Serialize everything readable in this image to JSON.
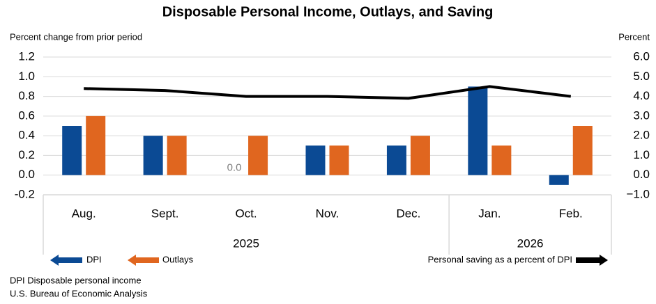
{
  "chart_data": {
    "type": "bar-line",
    "title": "Disposable Personal Income, Outlays, and Saving",
    "y_label": "Percent change from prior period",
    "y2_label": "Percent",
    "categories": [
      "Aug.",
      "Sept.",
      "Oct.",
      "Nov.",
      "Dec.",
      "Jan.",
      "Feb."
    ],
    "category_groups": [
      {
        "label": "2025",
        "span": 5
      },
      {
        "label": "2026",
        "span": 2
      }
    ],
    "series": [
      {
        "name": "DPI",
        "type": "bar",
        "color": "#0b4a94",
        "values": [
          0.5,
          0.4,
          0.0,
          0.3,
          0.3,
          0.9,
          -0.1
        ],
        "value_labels": [
          null,
          null,
          "0.0",
          null,
          null,
          null,
          null
        ]
      },
      {
        "name": "Outlays",
        "type": "bar",
        "color": "#e0661f",
        "values": [
          0.6,
          0.4,
          0.4,
          0.3,
          0.4,
          0.3,
          0.5
        ]
      },
      {
        "name": "Personal saving as a percent of DPI",
        "type": "line",
        "axis": "y2",
        "color": "#000000",
        "values": [
          4.4,
          4.3,
          4.0,
          4.0,
          3.9,
          4.5,
          4.0
        ]
      }
    ],
    "ylim": [
      -0.2,
      1.2
    ],
    "yticks": [
      -0.2,
      0.2,
      0.4,
      0.6,
      0.8,
      {
        "value": 0,
        "label": "0.0"
      },
      {
        "value": 1,
        "label": "1.0"
      },
      1.2
    ],
    "y2lim": [
      -1,
      6
    ],
    "y2ticks": [
      {
        "value": -1,
        "label": "−1.0"
      },
      {
        "value": 0,
        "label": "0.0"
      },
      {
        "value": 1,
        "label": "1.0"
      },
      {
        "value": 2,
        "label": "2.0"
      },
      {
        "value": 3,
        "label": "3.0"
      },
      {
        "value": 4,
        "label": "4.0"
      },
      {
        "value": 5,
        "label": "5.0"
      },
      {
        "value": 6,
        "label": "6.0"
      }
    ],
    "grid": true,
    "notes": [
      "DPI Disposable personal income",
      "U.S. Bureau of Economic Analysis"
    ]
  }
}
